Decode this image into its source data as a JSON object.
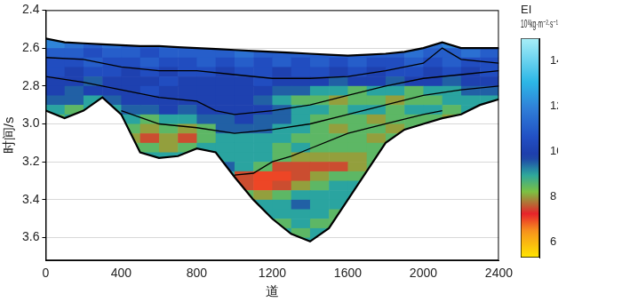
{
  "chart_data": {
    "type": "heatmap",
    "x_label": "道",
    "y_label": "时间/s",
    "xlim": [
      0,
      2400
    ],
    "xticks": [
      0,
      400,
      800,
      1200,
      1600,
      2000,
      2400
    ],
    "ylim": [
      2.4,
      3.72
    ],
    "yticks": [
      2.4,
      2.6,
      2.8,
      {
        "value": 3,
        "label": "3.0"
      },
      3.2,
      3.4,
      3.6
    ],
    "grid": "y",
    "heatmap": {
      "x": [
        50,
        150,
        250,
        350,
        450,
        550,
        650,
        750,
        850,
        950,
        1050,
        1150,
        1250,
        1350,
        1450,
        1550,
        1650,
        1750,
        1850,
        1950,
        2050,
        2150,
        2250,
        2350
      ],
      "y": [
        2.575,
        2.625,
        2.675,
        2.725,
        2.775,
        2.825,
        2.875,
        2.925,
        2.975,
        3.025,
        3.075,
        3.125,
        3.175,
        3.225,
        3.275,
        3.325,
        3.375,
        3.425,
        3.475,
        3.525,
        3.575,
        3.625
      ],
      "z": [
        [
          12,
          11.5,
          11,
          11.5,
          11,
          11,
          11.5,
          11,
          11,
          null,
          null,
          null,
          null,
          null,
          null,
          null,
          null,
          null,
          null,
          11,
          11.5,
          12,
          11.5,
          11
        ],
        [
          11,
          11,
          10.5,
          11,
          11,
          10.5,
          11,
          11,
          11,
          11,
          11.5,
          11,
          11,
          11,
          11,
          11,
          11,
          11,
          11,
          11.5,
          11,
          11,
          11.5,
          11
        ],
        [
          10.5,
          10.5,
          11,
          10.5,
          10.5,
          11,
          10.5,
          10.5,
          11,
          10.5,
          11,
          10.5,
          11,
          10.5,
          11,
          10.5,
          11,
          10.5,
          10.5,
          11,
          10.5,
          11,
          10.5,
          10.5
        ],
        [
          10.5,
          10,
          10.5,
          10.5,
          10,
          10.5,
          10,
          10.5,
          10.5,
          10,
          10.5,
          10.5,
          10,
          10.5,
          10.5,
          10,
          10.5,
          10,
          10.5,
          10.5,
          10,
          10.5,
          10,
          10.5
        ],
        [
          10,
          10,
          9.5,
          10,
          10,
          10,
          10.5,
          10,
          10,
          10,
          10,
          10.5,
          10,
          10,
          10,
          9.5,
          10,
          10,
          9.5,
          10,
          10,
          9.5,
          10,
          10
        ],
        [
          10,
          9.5,
          10,
          10,
          10,
          10.5,
          10,
          10,
          10,
          10,
          10,
          10,
          9.5,
          9.5,
          9,
          9,
          8.5,
          9,
          9,
          8.5,
          9,
          9,
          9.5,
          9.5
        ],
        [
          9.5,
          9.5,
          9,
          9.5,
          10,
          10,
          10,
          10,
          10,
          10,
          10,
          9.5,
          9,
          8.5,
          8.5,
          8,
          8.5,
          8.5,
          8,
          8.5,
          8.5,
          9,
          9,
          9
        ],
        [
          9,
          8.5,
          9,
          9,
          9.5,
          9.5,
          10,
          9.5,
          10,
          10,
          10,
          10,
          9.5,
          9,
          9,
          8.5,
          9,
          9,
          8.5,
          9,
          9,
          8.5,
          9,
          null
        ],
        [
          8.5,
          9,
          null,
          null,
          9,
          8.5,
          9,
          9,
          9.5,
          9.5,
          10,
          9.5,
          9.5,
          9,
          8.5,
          8.5,
          8.5,
          8,
          8.5,
          8.5,
          8.5,
          8,
          null,
          null
        ],
        [
          null,
          null,
          null,
          null,
          8.5,
          8,
          8.5,
          8,
          8.5,
          9.5,
          9.5,
          9.5,
          9,
          9,
          8.5,
          8,
          8.5,
          8.5,
          8,
          8.5,
          null,
          null,
          null,
          null
        ],
        [
          null,
          null,
          null,
          null,
          8,
          7.5,
          8,
          7.5,
          8.5,
          9,
          9,
          9,
          9,
          8.5,
          8.5,
          8.5,
          8.5,
          8,
          8.5,
          null,
          null,
          null,
          null,
          null
        ],
        [
          null,
          null,
          null,
          null,
          8.5,
          8.5,
          8,
          8.5,
          9,
          9,
          9,
          9,
          8.5,
          9,
          8.5,
          8.5,
          8.5,
          8.5,
          null,
          null,
          null,
          null,
          null,
          null
        ],
        [
          null,
          null,
          null,
          null,
          null,
          9,
          9,
          9,
          null,
          9,
          9,
          9,
          8.5,
          8,
          8,
          8,
          8,
          8.5,
          null,
          null,
          null,
          null,
          null,
          null
        ],
        [
          null,
          null,
          null,
          null,
          null,
          null,
          null,
          null,
          null,
          9.5,
          9,
          8.5,
          7.5,
          7.5,
          7.5,
          7.5,
          8,
          8.5,
          null,
          null,
          null,
          null,
          null,
          null
        ],
        [
          null,
          null,
          null,
          null,
          null,
          null,
          null,
          null,
          null,
          9,
          7.5,
          7,
          7,
          7.5,
          8,
          8.5,
          8.5,
          null,
          null,
          null,
          null,
          null,
          null,
          null
        ],
        [
          null,
          null,
          null,
          null,
          null,
          null,
          null,
          null,
          null,
          null,
          7.5,
          7,
          7.5,
          8,
          8.5,
          9,
          9,
          null,
          null,
          null,
          null,
          null,
          null,
          null
        ],
        [
          null,
          null,
          null,
          null,
          null,
          null,
          null,
          null,
          null,
          null,
          8.5,
          8,
          8.5,
          9,
          9,
          9,
          9,
          null,
          null,
          null,
          null,
          null,
          null,
          null
        ],
        [
          null,
          null,
          null,
          null,
          null,
          null,
          null,
          null,
          null,
          null,
          null,
          9,
          9,
          9.5,
          9,
          9,
          null,
          null,
          null,
          null,
          null,
          null,
          null,
          null
        ],
        [
          null,
          null,
          null,
          null,
          null,
          null,
          null,
          null,
          null,
          null,
          null,
          9,
          9,
          9,
          9,
          8.5,
          null,
          null,
          null,
          null,
          null,
          null,
          null,
          null
        ],
        [
          null,
          null,
          null,
          null,
          null,
          null,
          null,
          null,
          null,
          null,
          null,
          null,
          8.5,
          9,
          8.5,
          8.5,
          null,
          null,
          null,
          null,
          null,
          null,
          null,
          null
        ],
        [
          null,
          null,
          null,
          null,
          null,
          null,
          null,
          null,
          null,
          null,
          null,
          null,
          9,
          8.5,
          9,
          null,
          null,
          null,
          null,
          null,
          null,
          null,
          null,
          null
        ],
        [
          null,
          null,
          null,
          null,
          null,
          null,
          null,
          null,
          null,
          null,
          null,
          null,
          null,
          9,
          9,
          null,
          null,
          null,
          null,
          null,
          null,
          null,
          null,
          null
        ]
      ]
    },
    "colorbar": {
      "label": "EI",
      "unit": "10⁶kg·m⁻²·s⁻¹",
      "range": [
        5.3,
        15
      ],
      "ticks": [
        6,
        8,
        10,
        12,
        14
      ]
    },
    "series": [
      {
        "type": "line",
        "color": "#000000",
        "x": [
          0,
          100,
          200,
          300,
          400,
          500,
          600,
          700,
          800,
          900,
          1000,
          1100,
          1200,
          1300,
          1400,
          1500,
          1600,
          1700,
          1800,
          1900,
          2000,
          2100,
          2200,
          2300,
          2400
        ],
        "values": [
          2.55,
          2.57,
          2.575,
          2.58,
          2.585,
          2.59,
          2.59,
          2.595,
          2.6,
          2.605,
          2.61,
          2.615,
          2.62,
          2.625,
          2.63,
          2.635,
          2.64,
          2.635,
          2.63,
          2.62,
          2.6,
          2.57,
          2.6,
          2.6,
          2.6
        ]
      },
      {
        "type": "line",
        "color": "#000000",
        "x": [
          0,
          100,
          200,
          300,
          400,
          500,
          600,
          700,
          800,
          900,
          1000,
          1100,
          1200,
          1300,
          1400,
          1500,
          1600,
          1700,
          1800,
          1900,
          2000,
          2100,
          2200,
          2300,
          2400
        ],
        "values": [
          2.93,
          2.97,
          2.93,
          2.86,
          2.95,
          3.15,
          3.18,
          3.17,
          3.13,
          3.15,
          3.28,
          3.4,
          3.5,
          3.58,
          3.62,
          3.55,
          3.4,
          3.25,
          3.1,
          3.03,
          3.0,
          2.97,
          2.95,
          2.9,
          2.87
        ]
      },
      {
        "type": "line",
        "color": "#000000",
        "x": [
          0,
          200,
          400,
          600,
          800,
          1000,
          1200,
          1400,
          1600,
          1800,
          2000,
          2100,
          2200,
          2400
        ],
        "values": [
          2.65,
          2.66,
          2.7,
          2.72,
          2.72,
          2.74,
          2.76,
          2.76,
          2.75,
          2.72,
          2.68,
          2.6,
          2.66,
          2.68
        ]
      },
      {
        "type": "line",
        "color": "#000000",
        "x": [
          0,
          200,
          400,
          600,
          800,
          900,
          1000,
          1200,
          1400,
          1600,
          1800,
          2000,
          2200,
          2400
        ],
        "values": [
          2.75,
          2.78,
          2.82,
          2.86,
          2.88,
          2.93,
          2.95,
          2.93,
          2.9,
          2.85,
          2.8,
          2.76,
          2.74,
          2.72
        ]
      },
      {
        "type": "line",
        "color": "#000000",
        "x": [
          400,
          600,
          800,
          1000,
          1200,
          1400,
          1600,
          1800,
          2000,
          2200,
          2400
        ],
        "values": [
          2.93,
          3.0,
          3.02,
          3.05,
          3.03,
          3.0,
          2.95,
          2.9,
          2.85,
          2.82,
          2.8
        ]
      },
      {
        "type": "line",
        "color": "#000000",
        "x": [
          1000,
          1100,
          1200,
          1300,
          1400,
          1600,
          1800,
          2000,
          2100
        ],
        "values": [
          3.27,
          3.26,
          3.2,
          3.17,
          3.13,
          3.05,
          3.0,
          2.95,
          2.93
        ]
      }
    ]
  }
}
